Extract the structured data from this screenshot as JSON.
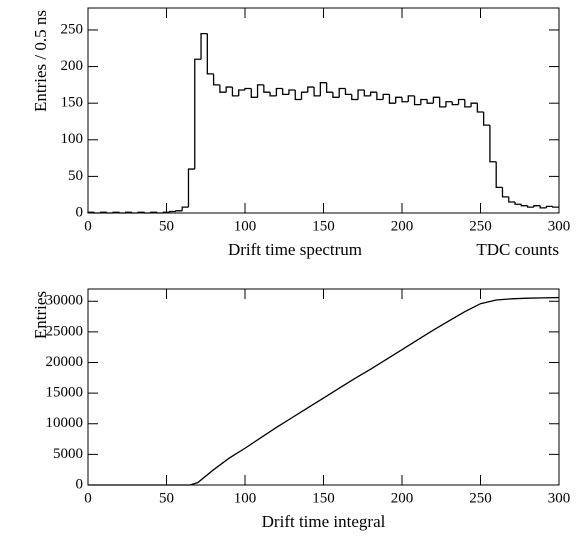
{
  "chart_data": [
    {
      "type": "histogram",
      "xlabel": "Drift time spectrum",
      "xunit": "TDC counts",
      "ylabel": "Entries / 0.5 ns",
      "bins": [
        0,
        4,
        8,
        12,
        16,
        20,
        24,
        28,
        32,
        36,
        40,
        44,
        48,
        52,
        56,
        60,
        64,
        68,
        72,
        76,
        80,
        84,
        88,
        92,
        96,
        100,
        104,
        108,
        112,
        116,
        120,
        124,
        128,
        132,
        136,
        140,
        144,
        148,
        152,
        156,
        160,
        164,
        168,
        172,
        176,
        180,
        184,
        188,
        192,
        196,
        200,
        204,
        208,
        212,
        216,
        220,
        224,
        228,
        232,
        236,
        240,
        244,
        248,
        252,
        256,
        260,
        264,
        268,
        272,
        276,
        280,
        284,
        288,
        292,
        296,
        300
      ],
      "values": [
        1,
        0,
        1,
        0,
        1,
        0,
        1,
        0,
        1,
        0,
        1,
        0,
        1,
        2,
        3,
        8,
        60,
        210,
        245,
        190,
        175,
        165,
        172,
        160,
        168,
        170,
        158,
        175,
        165,
        160,
        170,
        162,
        168,
        155,
        165,
        172,
        160,
        178,
        165,
        158,
        170,
        162,
        155,
        168,
        160,
        165,
        155,
        162,
        150,
        158,
        152,
        160,
        148,
        155,
        150,
        158,
        145,
        152,
        148,
        155,
        145,
        150,
        138,
        120,
        70,
        35,
        22,
        15,
        12,
        10,
        8,
        10,
        7,
        9,
        8
      ],
      "xlim": [
        0,
        300
      ],
      "xticks": [
        0,
        50,
        100,
        150,
        200,
        250,
        300
      ],
      "ylim": [
        0,
        280
      ],
      "yticks": [
        0,
        50,
        100,
        150,
        200,
        250
      ]
    },
    {
      "type": "line",
      "xlabel": "Drift time integral",
      "ylabel": "Entries",
      "x": [
        0,
        10,
        20,
        30,
        40,
        50,
        60,
        65,
        70,
        80,
        90,
        100,
        110,
        120,
        130,
        140,
        150,
        160,
        170,
        180,
        190,
        200,
        210,
        220,
        230,
        240,
        250,
        260,
        270,
        280,
        290,
        300
      ],
      "values": [
        0,
        0,
        0,
        0,
        0,
        0,
        0,
        0,
        400,
        2500,
        4400,
        6000,
        7700,
        9400,
        11000,
        12600,
        14200,
        15800,
        17400,
        18900,
        20500,
        22100,
        23700,
        25300,
        26800,
        28300,
        29600,
        30200,
        30400,
        30500,
        30550,
        30600
      ],
      "xlim": [
        0,
        300
      ],
      "xticks": [
        0,
        50,
        100,
        150,
        200,
        250,
        300
      ],
      "ylim": [
        0,
        32000
      ],
      "yticks": [
        0,
        5000,
        10000,
        15000,
        20000,
        25000,
        30000
      ]
    }
  ]
}
